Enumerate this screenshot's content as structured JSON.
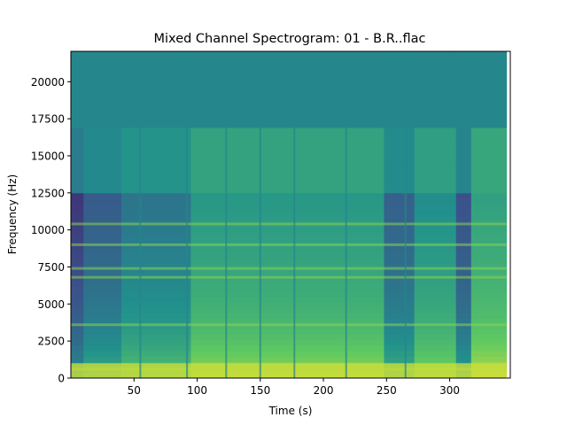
{
  "chart_data": {
    "type": "heatmap",
    "title": "Mixed Channel Spectrogram: 01 - B.R..flac",
    "xlabel": "Time (s)",
    "ylabel": "Frequency (Hz)",
    "xlim": [
      0,
      348
    ],
    "ylim": [
      0,
      22050
    ],
    "x_ticks": [
      50,
      100,
      150,
      200,
      250,
      300
    ],
    "y_ticks": [
      0,
      2500,
      5000,
      7500,
      10000,
      12500,
      15000,
      17500,
      20000
    ],
    "colormap": "viridis",
    "grid": false,
    "duration_s": 345,
    "time_segments": [
      {
        "start": 0,
        "end": 10,
        "level": 0.3
      },
      {
        "start": 10,
        "end": 40,
        "level": 0.42
      },
      {
        "start": 40,
        "end": 95,
        "level": 0.52
      },
      {
        "start": 95,
        "end": 248,
        "level": 0.66
      },
      {
        "start": 248,
        "end": 272,
        "level": 0.44
      },
      {
        "start": 272,
        "end": 305,
        "level": 0.62
      },
      {
        "start": 305,
        "end": 317,
        "level": 0.38
      },
      {
        "start": 317,
        "end": 345,
        "level": 0.7
      }
    ],
    "vertical_dips_s": [
      55,
      92,
      123,
      150,
      177,
      218,
      265
    ],
    "harmonic_bands_hz": [
      600,
      3600,
      6800,
      7400,
      9000,
      10400
    ]
  },
  "colors": {
    "background_top": "#2a8a86",
    "axis": "#000000"
  }
}
